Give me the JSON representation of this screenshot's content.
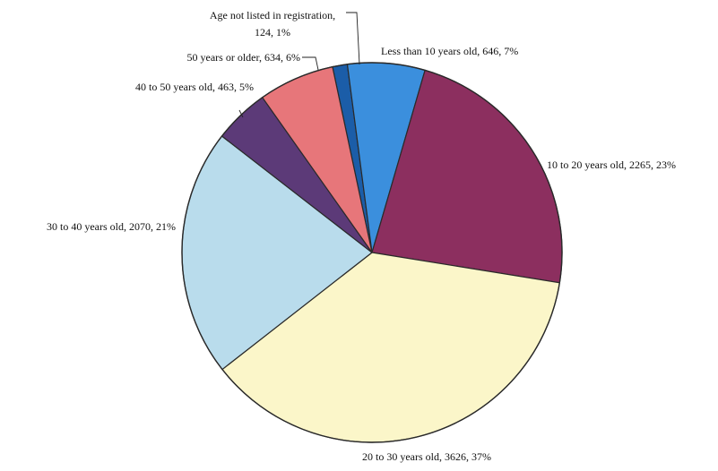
{
  "chart_data": {
    "type": "pie",
    "title": "",
    "slices": [
      {
        "label": "Age not listed in registration,",
        "label_line2": "124, 1%",
        "value": 124,
        "percent": 1,
        "color": "#1b5da8"
      },
      {
        "label": "Less than 10 years old, 646, 7%",
        "value": 646,
        "percent": 7,
        "color": "#3b8fdd"
      },
      {
        "label": "10 to 20 years old, 2265, 23%",
        "value": 2265,
        "percent": 23,
        "color": "#8c2f5f"
      },
      {
        "label": "20 to 30 years old, 3626, 37%",
        "value": 3626,
        "percent": 37,
        "color": "#fbf6c9"
      },
      {
        "label": "30 to 40 years old, 2070, 21%",
        "value": 2070,
        "percent": 21,
        "color": "#b9dcec"
      },
      {
        "label": "40 to 50 years old, 463, 5%",
        "value": 463,
        "percent": 5,
        "color": "#5c3a78"
      },
      {
        "label": "50 years or older, 634, 6%",
        "value": 634,
        "percent": 6,
        "color": "#e7767a"
      }
    ]
  }
}
